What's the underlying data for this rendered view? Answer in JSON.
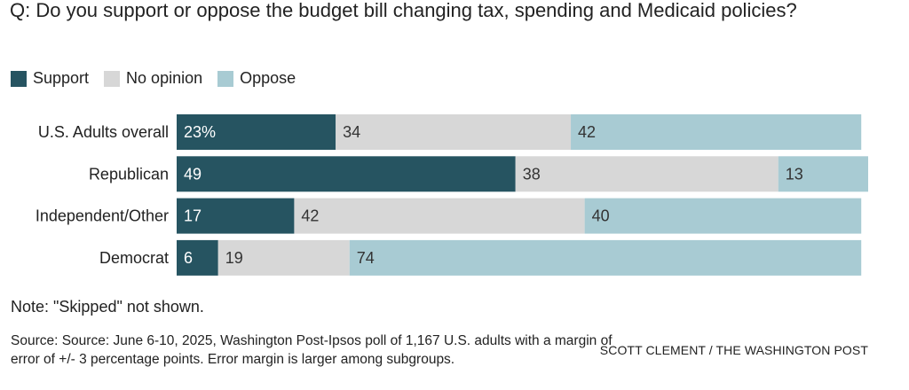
{
  "title": "Q: Do you support or oppose the budget bill changing tax, spending and Medicaid policies?",
  "note": "Note: \"Skipped\" not shown.",
  "source": "Source: Source: June 6-10, 2025, Washington Post-Ipsos poll of 1,167 U.S. adults with a margin of error of +/- 3 percentage points. Error margin is larger among subgroups.",
  "credit": "SCOTT CLEMENT / THE WASHINGTON POST",
  "colors": {
    "support": "#265461",
    "no_opinion": "#d7d7d7",
    "oppose": "#a8cbd3"
  },
  "chart_data": {
    "type": "bar",
    "orientation": "horizontal",
    "stacked": true,
    "categories": [
      "U.S. Adults overall",
      "Republican",
      "Independent/Other",
      "Democrat"
    ],
    "series": [
      {
        "name": "Support",
        "values": [
          23,
          49,
          17,
          6
        ],
        "labels": [
          "23%",
          "49",
          "17",
          "6"
        ]
      },
      {
        "name": "No opinion",
        "values": [
          34,
          38,
          42,
          19
        ],
        "labels": [
          "34",
          "38",
          "42",
          "19"
        ]
      },
      {
        "name": "Oppose",
        "values": [
          42,
          13,
          40,
          74
        ],
        "labels": [
          "42",
          "13",
          "40",
          "74"
        ]
      }
    ],
    "xlim": [
      0,
      100
    ],
    "legend": "top-left",
    "grid": false
  }
}
